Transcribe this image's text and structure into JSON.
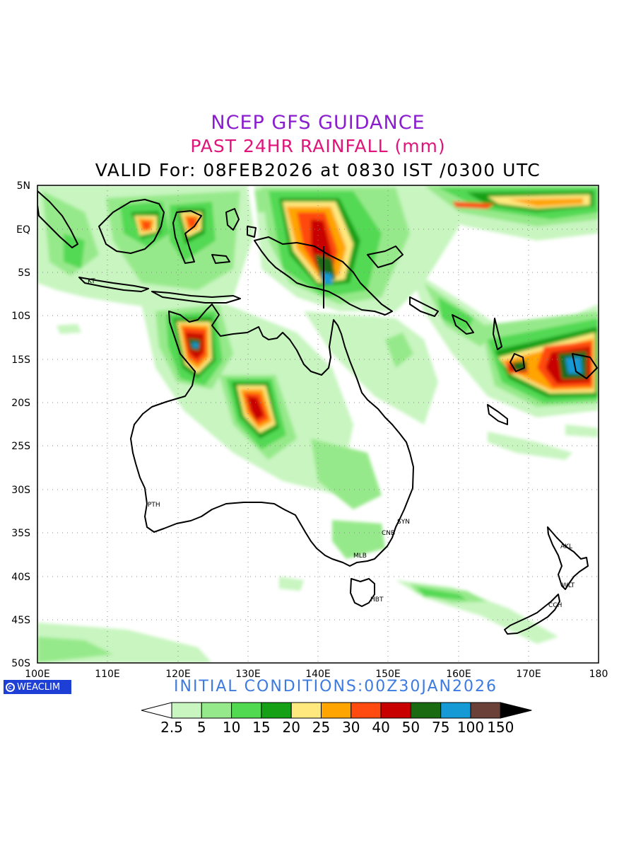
{
  "titles": {
    "line1": "NCEP GFS GUIDANCE",
    "line2": "PAST 24HR RAINFALL (mm)",
    "line3": "VALID For: 08FEB2026 at 0830 IST /0300 UTC"
  },
  "axes": {
    "lat_labels": [
      "5N",
      "EQ",
      "5S",
      "10S",
      "15S",
      "20S",
      "25S",
      "30S",
      "35S",
      "40S",
      "45S",
      "50S"
    ],
    "lon_labels": [
      "100E",
      "110E",
      "120E",
      "130E",
      "140E",
      "150E",
      "160E",
      "170E",
      "180"
    ]
  },
  "stations": [
    {
      "code": "KT",
      "lon": 107.5,
      "lat": -6.2
    },
    {
      "code": "PTH",
      "lon": 115.9,
      "lat": -31.9
    },
    {
      "code": "SYN",
      "lon": 151.2,
      "lat": -33.9
    },
    {
      "code": "CNB",
      "lon": 149.1,
      "lat": -35.3
    },
    {
      "code": "MLB",
      "lon": 144.9,
      "lat": -37.8
    },
    {
      "code": "HBT",
      "lon": 147.3,
      "lat": -42.9
    },
    {
      "code": "AKL",
      "lon": 174.8,
      "lat": -36.9
    },
    {
      "code": "WLT",
      "lon": 174.8,
      "lat": -41.3
    },
    {
      "code": "CCH",
      "lon": 172.6,
      "lat": -43.5
    }
  ],
  "initial_conditions": "INITIAL CONDITIONS:00Z30JAN2026",
  "brand": "WEACLIM",
  "legend": {
    "labels": [
      "2.5",
      "5",
      "10",
      "15",
      "20",
      "25",
      "30",
      "40",
      "50",
      "75",
      "100",
      "150"
    ],
    "colors": [
      "#c8f5c0",
      "#96e98a",
      "#52d952",
      "#16a016",
      "#ffe87e",
      "#ffa400",
      "#ff4a10",
      "#c80000",
      "#1a6a12",
      "#159ad6",
      "#6b4038"
    ]
  }
}
